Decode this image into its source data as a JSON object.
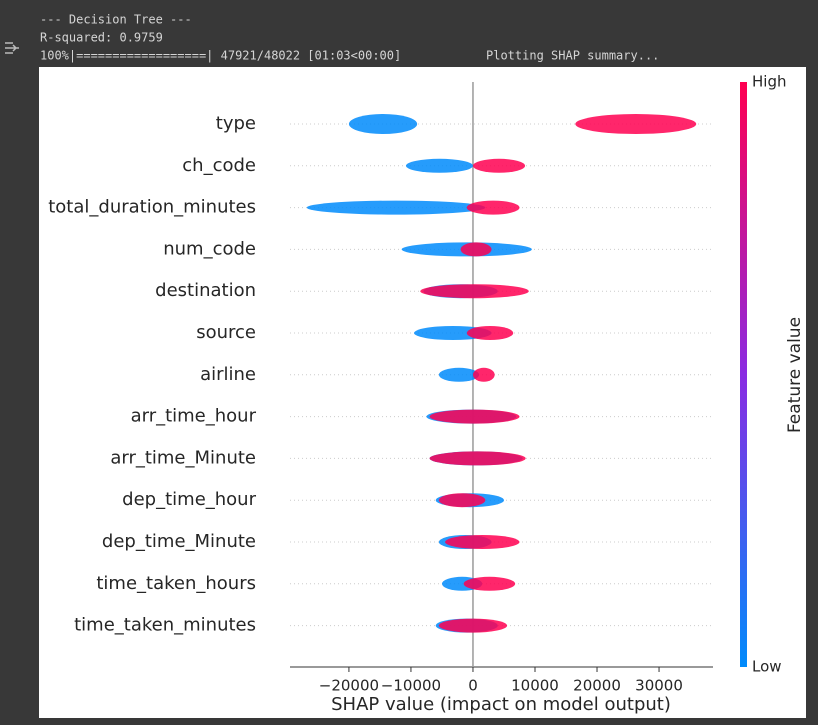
{
  "output": {
    "lines": [
      "--- Decision Tree ---",
      "R-squared: 0.9759",
      "100%|==================| 47921/48022 [01:03<00:00]",
      "Plotting SHAP summary..."
    ]
  },
  "chart_data": {
    "type": "beeswarm",
    "xlabel": "SHAP value (impact on model output)",
    "colorbar_label": "Feature value",
    "categories": [
      "type",
      "ch_code",
      "total_duration_minutes",
      "num_code",
      "destination",
      "source",
      "airline",
      "arr_time_hour",
      "arr_time_Minute",
      "dep_time_hour",
      "dep_time_Minute",
      "time_taken_hours",
      "time_taken_minutes"
    ],
    "series": [
      {
        "name": "Low",
        "color": "#008bfb",
        "values": [
          [
            -20000,
            -9000
          ],
          [
            -10800,
            0
          ],
          [
            -26800,
            2000
          ],
          [
            -11500,
            9500
          ],
          [
            -8000,
            4000
          ],
          [
            -9500,
            3000
          ],
          [
            -5500,
            1000
          ],
          [
            -7500,
            7000
          ],
          [
            -7000,
            8000
          ],
          [
            -6000,
            5000
          ],
          [
            -5500,
            3000
          ],
          [
            -5000,
            1500
          ],
          [
            -6000,
            4000
          ]
        ]
      },
      {
        "name": "High",
        "color": "#ff0051",
        "values": [
          [
            16500,
            36000
          ],
          [
            0,
            8400
          ],
          [
            -1000,
            7500
          ],
          [
            -2000,
            3000
          ],
          [
            -8500,
            9000
          ],
          [
            -1000,
            6500
          ],
          [
            0,
            3500
          ],
          [
            -7000,
            7500
          ],
          [
            -7000,
            8500
          ],
          [
            -5500,
            2000
          ],
          [
            -4500,
            7500
          ],
          [
            -1500,
            6800
          ],
          [
            -5500,
            5500
          ]
        ]
      }
    ],
    "xlim": [
      -29500,
      38700
    ],
    "xticks": [
      {
        "value": -20000,
        "label": "−20000"
      },
      {
        "value": -10000,
        "label": "−10000"
      },
      0,
      10000,
      20000,
      30000
    ]
  }
}
